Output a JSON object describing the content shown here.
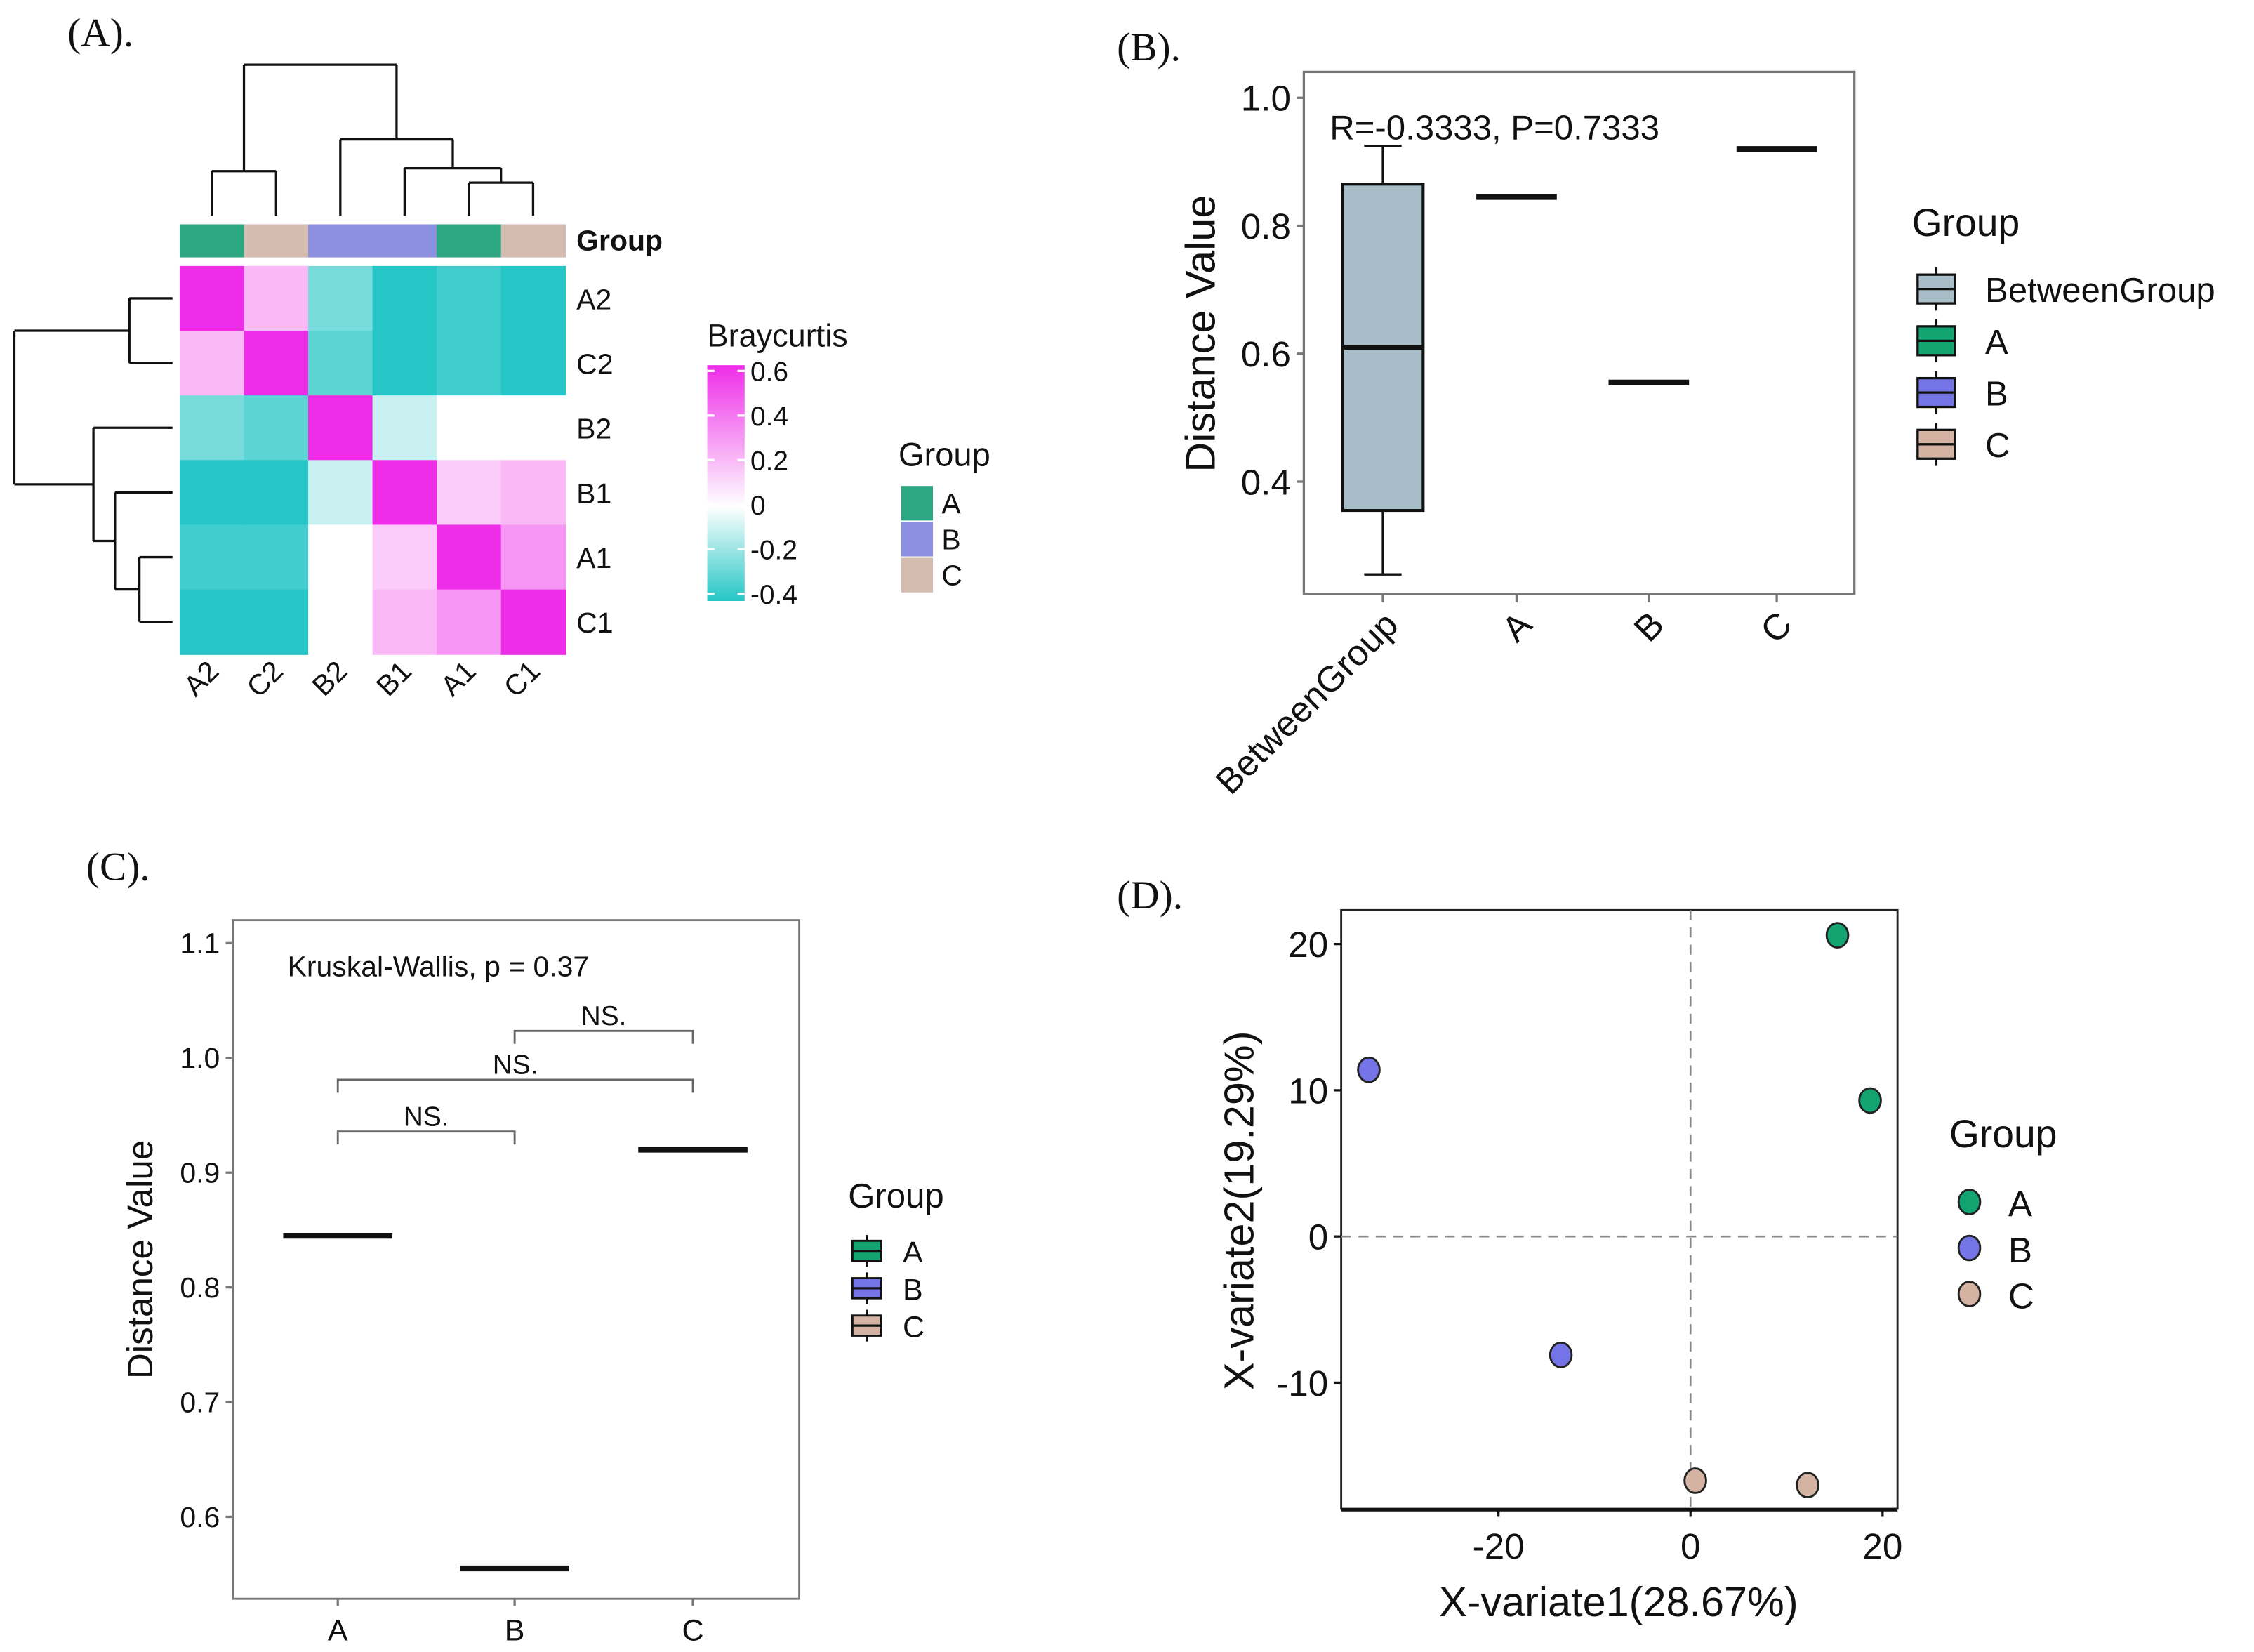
{
  "panels": {
    "a": "(A).",
    "b": "(B).",
    "c": "(C).",
    "d": "(D)."
  },
  "colors": {
    "groupA": "#12a572",
    "groupB": "#7474e6",
    "groupC": "#d4b3a3",
    "annA": "#2ba882",
    "annB": "#8d8fe0",
    "annC": "#d4bcb0",
    "between": "#a7bec8",
    "neg": "#26c6c6",
    "zero": "#ffffff",
    "pos": "#ee2de8"
  },
  "chart_data": [
    {
      "type": "heatmap",
      "title": "",
      "rows": [
        "A2",
        "C2",
        "B2",
        "B1",
        "A1",
        "C1"
      ],
      "cols": [
        "A2",
        "C2",
        "B2",
        "B1",
        "A1",
        "C1"
      ],
      "col_groups": [
        "A",
        "C",
        "B",
        "B",
        "A",
        "C"
      ],
      "annotation_label": "Group",
      "values": [
        [
          0.6,
          0.2,
          -0.25,
          -0.4,
          -0.35,
          -0.4
        ],
        [
          0.2,
          0.6,
          -0.3,
          -0.4,
          -0.35,
          -0.4
        ],
        [
          -0.25,
          -0.3,
          0.6,
          -0.1,
          0.0,
          0.0
        ],
        [
          -0.4,
          -0.4,
          -0.1,
          0.6,
          0.15,
          0.2
        ],
        [
          -0.35,
          -0.35,
          0.0,
          0.15,
          0.6,
          0.3
        ],
        [
          -0.4,
          -0.4,
          0.0,
          0.2,
          0.3,
          0.6
        ]
      ],
      "colorbar": {
        "title": "Braycurtis",
        "ticks": [
          "0.6",
          "0.4",
          "0.2",
          "0",
          "-0.2",
          "-0.4"
        ],
        "range": [
          -0.4,
          0.6
        ]
      },
      "legend": {
        "title": "Group",
        "items": [
          "A",
          "B",
          "C"
        ]
      }
    },
    {
      "type": "box",
      "categories": [
        "BetweenGroup",
        "A",
        "B",
        "C"
      ],
      "box": {
        "min": 0.255,
        "q1": 0.355,
        "median": 0.61,
        "q3": 0.865,
        "max": 0.925
      },
      "values": {
        "A": 0.845,
        "B": 0.555,
        "C": 0.92
      },
      "annotation": "R=-0.3333, P=0.7333",
      "ylabel": "Distance Value",
      "yticks": [
        "1.0",
        "0.8",
        "0.6",
        "0.4"
      ],
      "ylim": [
        0.22,
        1.04
      ],
      "legend": {
        "title": "Group",
        "items": [
          "BetweenGroup",
          "A",
          "B",
          "C"
        ]
      }
    },
    {
      "type": "box",
      "categories": [
        "A",
        "B",
        "C"
      ],
      "values": [
        0.845,
        0.555,
        0.92
      ],
      "annotation": "Kruskal-Wallis, p = 0.37",
      "comparisons": [
        {
          "pair": [
            "A",
            "B"
          ],
          "label": "NS."
        },
        {
          "pair": [
            "A",
            "C"
          ],
          "label": "NS."
        },
        {
          "pair": [
            "B",
            "C"
          ],
          "label": "NS."
        }
      ],
      "ylabel": "Distance Value",
      "yticks": [
        "1.1",
        "1.0",
        "0.9",
        "0.8",
        "0.7",
        "0.6"
      ],
      "ylim": [
        0.53,
        1.12
      ],
      "legend": {
        "title": "Group",
        "items": [
          "A",
          "B",
          "C"
        ]
      }
    },
    {
      "type": "scatter",
      "xlabel": "X-variate1(28.67%)",
      "ylabel": "X-variate2(19.29%)",
      "xticks": [
        "-20",
        "0",
        "20"
      ],
      "yticks": [
        "20",
        "10",
        "0",
        "-10"
      ],
      "xlim": [
        -36.3,
        21.6
      ],
      "ylim": [
        -18.5,
        22.4
      ],
      "points": [
        {
          "group": "A",
          "x": 15.3,
          "y": 20.6
        },
        {
          "group": "A",
          "x": 18.7,
          "y": 9.3
        },
        {
          "group": "B",
          "x": -33.5,
          "y": 11.4
        },
        {
          "group": "B",
          "x": -13.5,
          "y": -8.1
        },
        {
          "group": "C",
          "x": 0.5,
          "y": -16.7
        },
        {
          "group": "C",
          "x": 12.2,
          "y": -17.0
        }
      ],
      "legend": {
        "title": "Group",
        "items": [
          "A",
          "B",
          "C"
        ]
      }
    }
  ]
}
